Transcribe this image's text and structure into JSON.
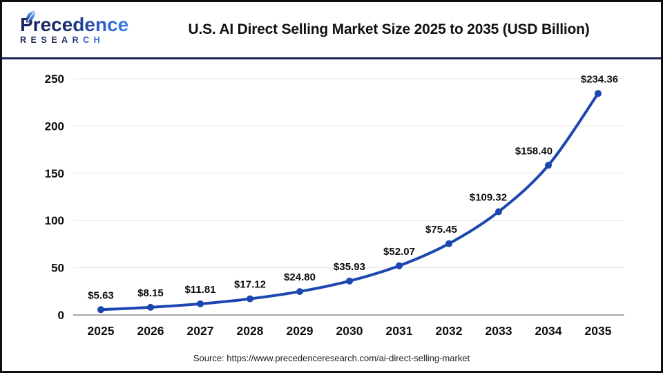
{
  "header": {
    "logo": {
      "brand": "Precedence",
      "brand_sub": "RESEARCH",
      "leaf_color": "#3f7ce0",
      "navy": "#1b2a6b",
      "blue": "#2f6bd8"
    },
    "title": "U.S. AI Direct Selling Market Size 2025 to 2035 (USD Billion)"
  },
  "chart_data": {
    "type": "line",
    "title": "U.S. AI Direct Selling Market Size 2025 to 2035 (USD Billion)",
    "categories": [
      "2025",
      "2026",
      "2027",
      "2028",
      "2029",
      "2030",
      "2031",
      "2032",
      "2033",
      "2034",
      "2035"
    ],
    "series": [
      {
        "name": "U.S. AI Direct Selling Market Size (USD Billion)",
        "values": [
          5.63,
          8.15,
          11.81,
          17.12,
          24.8,
          35.93,
          52.07,
          75.45,
          109.32,
          158.4,
          234.36
        ]
      }
    ],
    "data_labels": [
      "$5.63",
      "$8.15",
      "$11.81",
      "$17.12",
      "$24.80",
      "$35.93",
      "$52.07",
      "$75.45",
      "$109.32",
      "$158.40",
      "$234.36"
    ],
    "xlabel": "",
    "ylabel": "",
    "yticks": [
      0,
      50,
      100,
      150,
      200,
      250
    ],
    "ylim": [
      0,
      250
    ],
    "grid": true,
    "legend": "none",
    "line_color": "#1c46b0",
    "marker_color": "#1c46b0",
    "grid_color": "#e9e9e9",
    "baseline_color": "#a8a8a8",
    "label_color": "#0d0d0d"
  },
  "footer": {
    "source": "Source: https://www.precedenceresearch.com/ai-direct-selling-market"
  }
}
